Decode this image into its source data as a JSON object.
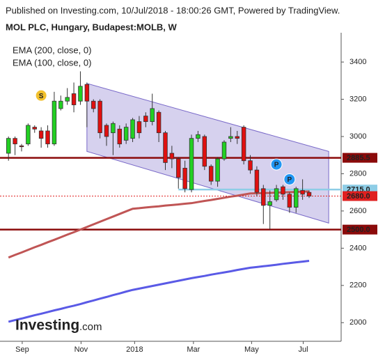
{
  "header": {
    "published": "Published on Investing.com, 10/Jul/2018 - 18:00:26 GMT, Powered by TradingView.",
    "symbol": "MOL PLC, Hungary, Budapest:MOLB, W"
  },
  "logo": {
    "brand": "Investing",
    "suffix": ".com"
  },
  "chart_data": {
    "type": "candlestick",
    "x": [
      0,
      1,
      2,
      3,
      4,
      5,
      6,
      7,
      8,
      9,
      10,
      11,
      12,
      13,
      14,
      15,
      16,
      17,
      18,
      19,
      20,
      21,
      22,
      23,
      24,
      25,
      26,
      27,
      28,
      29,
      30,
      31,
      32,
      33,
      34,
      35,
      36,
      37,
      38,
      39,
      40,
      41,
      42,
      43,
      44,
      45,
      46
    ],
    "open": [
      2910,
      2990,
      2950,
      2960,
      3050,
      3030,
      3030,
      2960,
      3150,
      3190,
      3230,
      3190,
      3280,
      3190,
      3190,
      3060,
      3020,
      3040,
      2980,
      2990,
      3080,
      3110,
      3080,
      3130,
      3020,
      2910,
      2880,
      2830,
      2715,
      2990,
      3000,
      2840,
      2760,
      2880,
      2990,
      3000,
      3050,
      2870,
      2820,
      2720,
      2630,
      2660,
      2730,
      2690,
      2620,
      2710,
      2700
    ],
    "high": [
      3000,
      3000,
      2960,
      3070,
      3060,
      3050,
      3060,
      3240,
      3220,
      3260,
      3290,
      3350,
      3290,
      3200,
      3200,
      3070,
      3080,
      3060,
      3070,
      3100,
      3110,
      3130,
      3230,
      3140,
      3030,
      2950,
      2890,
      2870,
      3010,
      3030,
      3010,
      2850,
      2890,
      2980,
      3050,
      3030,
      3060,
      2900,
      2840,
      2740,
      2710,
      2740,
      2740,
      2700,
      2730,
      2770,
      2710
    ],
    "low": [
      2870,
      2900,
      2920,
      2950,
      3020,
      2940,
      2940,
      2950,
      3140,
      3170,
      3130,
      3170,
      3050,
      3130,
      2990,
      2950,
      2900,
      2940,
      2960,
      2970,
      2990,
      3050,
      3060,
      2970,
      2820,
      2830,
      2720,
      2700,
      2700,
      2970,
      2820,
      2740,
      2730,
      2870,
      2970,
      2960,
      2850,
      2800,
      2680,
      2530,
      2500,
      2650,
      2660,
      2590,
      2590,
      2660,
      2670
    ],
    "close": [
      2990,
      2960,
      2945,
      3060,
      3040,
      2990,
      2960,
      3190,
      3190,
      3210,
      3170,
      3270,
      3190,
      3150,
      3020,
      3000,
      3070,
      2960,
      3050,
      3090,
      3020,
      3080,
      3150,
      3020,
      2860,
      2880,
      2780,
      2720,
      2990,
      3010,
      2840,
      2760,
      2880,
      2970,
      3000,
      2990,
      2870,
      2820,
      2700,
      2630,
      2650,
      2720,
      2690,
      2620,
      2720,
      2690,
      2680
    ],
    "up_color": "#22d022",
    "down_color": "#e01010",
    "lines": [
      {
        "name": "EMA (200, close, 0)",
        "color": "#5a5ae6",
        "values": [
          2005,
          2014,
          2022,
          2031,
          2040,
          2048,
          2057,
          2066,
          2074,
          2083,
          2091,
          2100,
          2110,
          2119,
          2129,
          2138,
          2148,
          2157,
          2167,
          2176,
          2183,
          2190,
          2197,
          2204,
          2211,
          2218,
          2225,
          2232,
          2239,
          2245,
          2251,
          2258,
          2264,
          2270,
          2276,
          2283,
          2289,
          2295,
          2299,
          2303,
          2307,
          2311,
          2316,
          2320,
          2324,
          2328,
          2332
        ]
      },
      {
        "name": "EMA (100, close, 0)",
        "color": "#c05555",
        "values": [
          2350,
          2364,
          2377,
          2391,
          2405,
          2418,
          2432,
          2445,
          2459,
          2473,
          2486,
          2500,
          2514,
          2528,
          2542,
          2556,
          2570,
          2584,
          2598,
          2612,
          2615,
          2619,
          2622,
          2625,
          2629,
          2632,
          2635,
          2639,
          2642,
          2648,
          2654,
          2659,
          2665,
          2671,
          2677,
          2682,
          2688,
          2694,
          2695,
          2696,
          2697,
          2699,
          2700,
          2701,
          2702,
          2704,
          2705
        ]
      }
    ],
    "channel": {
      "x": [
        12,
        49
      ],
      "upper": [
        3285,
        2920
      ],
      "lower": [
        2920,
        2535
      ],
      "color": "#7868c8"
    },
    "levels": [
      {
        "value": 2885.5,
        "label": "2885.5",
        "color": "#8b0a0a",
        "style": "solid",
        "from": -1.3
      },
      {
        "value": 2715,
        "label": "2715.0",
        "color": "#8ecde6",
        "style": "solid",
        "from": 26
      },
      {
        "value": 2680,
        "label": "2680.0",
        "color": "#e02020",
        "style": "dotted",
        "from": -1.3
      },
      {
        "value": 2500,
        "label": "2500.0",
        "color": "#8b0a0a",
        "style": "solid",
        "from": -1.3
      }
    ],
    "markers": [
      {
        "label": "S",
        "x": 5,
        "y": 3220,
        "color": "#f2c12e"
      },
      {
        "label": "P",
        "x": 41,
        "y": 2850,
        "color": "#2196f3"
      },
      {
        "label": "P",
        "x": 43,
        "y": 2770,
        "color": "#2196f3"
      }
    ],
    "xlim": [
      -1.3,
      50.9
    ],
    "xticks": [
      {
        "value": 2.1,
        "label": "Sep"
      },
      {
        "value": 11.1,
        "label": "Nov"
      },
      {
        "value": 19.3,
        "label": "2018"
      },
      {
        "value": 28.3,
        "label": "Mar"
      },
      {
        "value": 37.2,
        "label": "May"
      },
      {
        "value": 45.1,
        "label": "Jul"
      }
    ],
    "ylim": [
      1900,
      3520
    ],
    "yticks": [
      2000,
      2200,
      2400,
      2600,
      2800,
      3000,
      3200,
      3400
    ]
  }
}
